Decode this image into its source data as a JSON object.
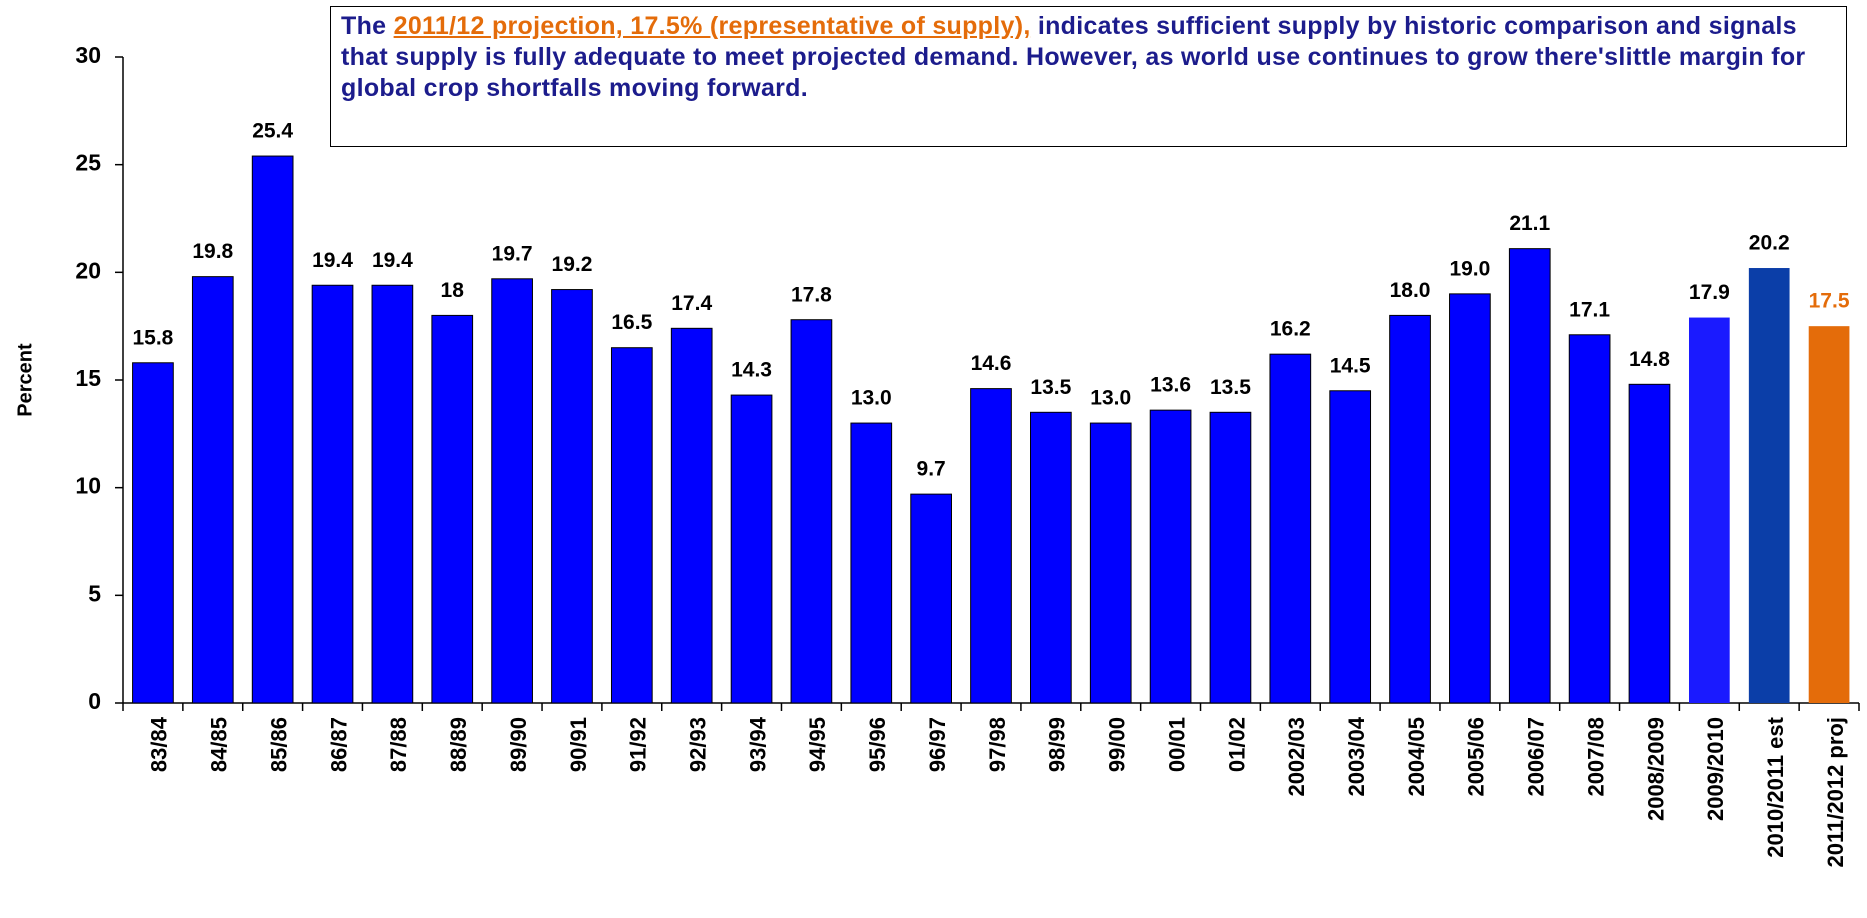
{
  "chart_data": {
    "type": "bar",
    "y_label": "Percent",
    "annotation": {
      "prefix": "The",
      "highlight": "2011/12 projection, 17.5% (representative of supply),",
      "text": "indicates sufficient supply by historic comparison and signals that supply is fully adequate to meet projected demand. However, as world use continues to grow there'slittle margin for global crop shortfalls moving forward."
    },
    "categories": [
      "83/84",
      "84/85",
      "85/86",
      "86/87",
      "87/88",
      "88/89",
      "89/90",
      "90/91",
      "91/92",
      "92/93",
      "93/94",
      "94/95",
      "95/96",
      "96/97",
      "97/98",
      "98/99",
      "99/00",
      "00/01",
      "01/02",
      "2002/03",
      "2003/04",
      "2004/05",
      "2005/06",
      "2006/07",
      "2007/08",
      "2008/2009",
      "2009/2010",
      "2010/2011 est",
      "2011/2012 proj"
    ],
    "values": [
      15.8,
      19.8,
      25.4,
      19.4,
      19.4,
      18,
      19.7,
      19.2,
      16.5,
      17.4,
      14.3,
      17.8,
      13.0,
      9.7,
      14.6,
      13.5,
      13.0,
      13.6,
      13.5,
      16.2,
      14.5,
      18.0,
      19.0,
      21.1,
      17.1,
      14.8,
      17.9,
      20.2,
      17.5
    ],
    "value_labels": [
      "15.8",
      "19.8",
      "25.4",
      "19.4",
      "19.4",
      "18",
      "19.7",
      "19.2",
      "16.5",
      "17.4",
      "14.3",
      "17.8",
      "13.0",
      "9.7",
      "14.6",
      "13.5",
      "13.0",
      "13.6",
      "13.5",
      "16.2",
      "14.5",
      "18.0",
      "19.0",
      "21.1",
      "17.1",
      "14.8",
      "17.9",
      "20.2",
      "17.5"
    ],
    "colors": [
      "#0000ff",
      "#0000ff",
      "#0000ff",
      "#0000ff",
      "#0000ff",
      "#0000ff",
      "#0000ff",
      "#0000ff",
      "#0000ff",
      "#0000ff",
      "#0000ff",
      "#0000ff",
      "#0000ff",
      "#0000ff",
      "#0000ff",
      "#0000ff",
      "#0000ff",
      "#0000ff",
      "#0000ff",
      "#0000ff",
      "#0000ff",
      "#0000ff",
      "#0000ff",
      "#0000ff",
      "#0000ff",
      "#0000ff",
      "#1a1aff",
      "#0b3ea8",
      "#e46c0a"
    ],
    "value_label_colors": [
      "#000000",
      "#000000",
      "#000000",
      "#000000",
      "#000000",
      "#000000",
      "#000000",
      "#000000",
      "#000000",
      "#000000",
      "#000000",
      "#000000",
      "#000000",
      "#000000",
      "#000000",
      "#000000",
      "#000000",
      "#000000",
      "#000000",
      "#000000",
      "#000000",
      "#000000",
      "#000000",
      "#000000",
      "#000000",
      "#000000",
      "#000000",
      "#000000",
      "#e46c0a"
    ],
    "ylim": [
      0,
      30
    ],
    "yticks": [
      0,
      5,
      10,
      15,
      20,
      25,
      30
    ],
    "grid": false
  }
}
